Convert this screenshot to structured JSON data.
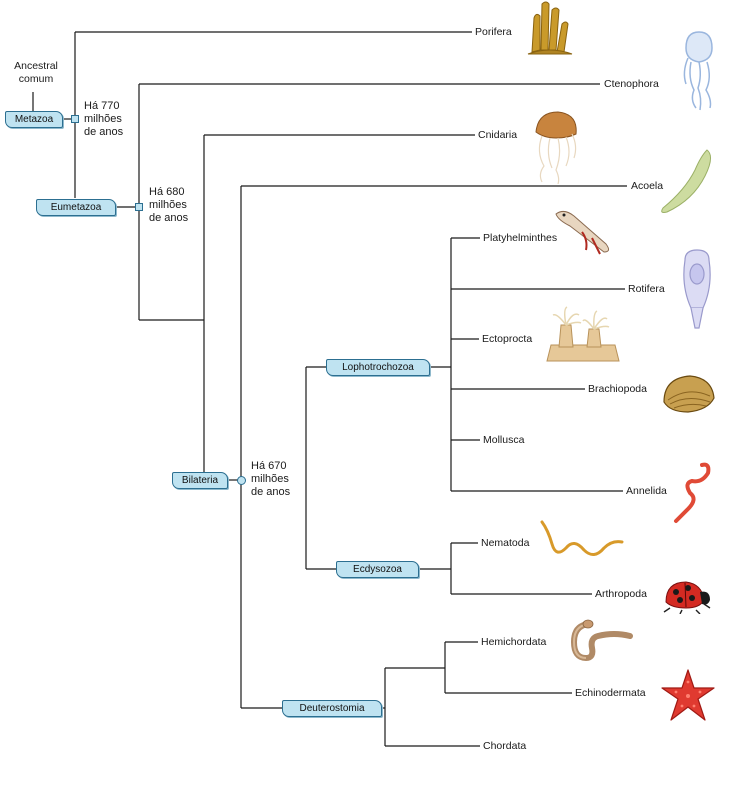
{
  "root_label": "Ancestral comum",
  "clades": {
    "metazoa": "Metazoa",
    "eumetazoa": "Eumetazoa",
    "bilateria": "Bilateria",
    "lophotrochozoa": "Lophotrochozoa",
    "ecdysozoa": "Ecdysozoa",
    "deuterostomia": "Deuterostomia"
  },
  "ages": {
    "a770": [
      "Há 770",
      "milhões",
      "de anos"
    ],
    "a680": [
      "Há 680",
      "milhões",
      "de anos"
    ],
    "a670": [
      "Há 670",
      "milhões",
      "de anos"
    ]
  },
  "taxa": {
    "porifera": "Porifera",
    "ctenophora": "Ctenophora",
    "cnidaria": "Cnidaria",
    "acoela": "Acoela",
    "platyhelminthes": "Platyhelminthes",
    "rotifera": "Rotifera",
    "ectoprocta": "Ectoprocta",
    "brachiopoda": "Brachiopoda",
    "mollusca": "Mollusca",
    "annelida": "Annelida",
    "nematoda": "Nematoda",
    "arthropoda": "Arthropoda",
    "hemichordata": "Hemichordata",
    "echinodermata": "Echinodermata",
    "chordata": "Chordata"
  },
  "colors": {
    "line": "#1a1a1a",
    "clade_fill": "#bfe3f1",
    "clade_border": "#2c6f91"
  },
  "icons": [
    "sponge-icon",
    "comb-jelly-icon",
    "jellyfish-icon",
    "acoel-worm-icon",
    "flatworm-icon",
    "rotifer-icon",
    "bryozoan-icon",
    "brachiopod-shell-icon",
    "annelid-worm-icon",
    "nematode-icon",
    "ladybug-icon",
    "acorn-worm-icon",
    "starfish-icon"
  ]
}
